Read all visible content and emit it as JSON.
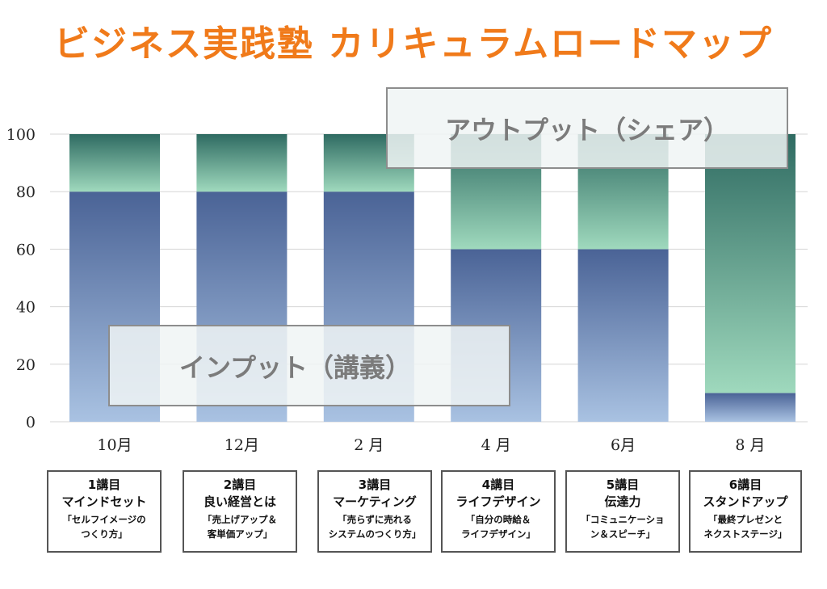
{
  "title": "ビジネス実践塾 カリキュラムロードマップ",
  "chart_data": {
    "type": "bar",
    "stacked": true,
    "categories": [
      "10月",
      "12月",
      "2 月",
      "4 月",
      "6月",
      "8 月"
    ],
    "series": [
      {
        "name": "インプット（講義）",
        "values": [
          80,
          80,
          80,
          60,
          60,
          10
        ]
      },
      {
        "name": "アウトプット（シェア）",
        "values": [
          20,
          20,
          20,
          40,
          40,
          90
        ]
      }
    ],
    "ylim": [
      0,
      100
    ],
    "yticks": [
      0,
      20,
      40,
      60,
      80,
      100
    ],
    "grid": true,
    "colors": {
      "input_top": "#4a6396",
      "input_bottom": "#a9c2e2",
      "output_top": "#2f6b62",
      "output_bottom": "#9fd9bd",
      "grid": "#d6d6d6",
      "title": "#f07a1a"
    }
  },
  "overlays": {
    "output_label": "アウトプット（シェア）",
    "input_label": "インプット（講義）"
  },
  "lessons": [
    {
      "num": "1講目",
      "name": "マインドセット",
      "desc1": "「セルフイメージの",
      "desc2": "つくり方」"
    },
    {
      "num": "2講目",
      "name": "良い経営とは",
      "desc1": "「売上げアップ＆",
      "desc2": "客単価アップ」"
    },
    {
      "num": "3講目",
      "name": "マーケティング",
      "desc1": "「売らずに売れる",
      "desc2": "システムのつくり方」"
    },
    {
      "num": "4講目",
      "name": "ライフデザイン",
      "desc1": "「自分の時給＆",
      "desc2": "ライフデザイン」"
    },
    {
      "num": "5講目",
      "name": "伝達力",
      "desc1": "「コミュニケーショ",
      "desc2": "ン＆スピーチ」"
    },
    {
      "num": "6講目",
      "name": "スタンドアップ",
      "desc1": "「最終プレゼンと",
      "desc2": "ネクストステージ」"
    }
  ]
}
